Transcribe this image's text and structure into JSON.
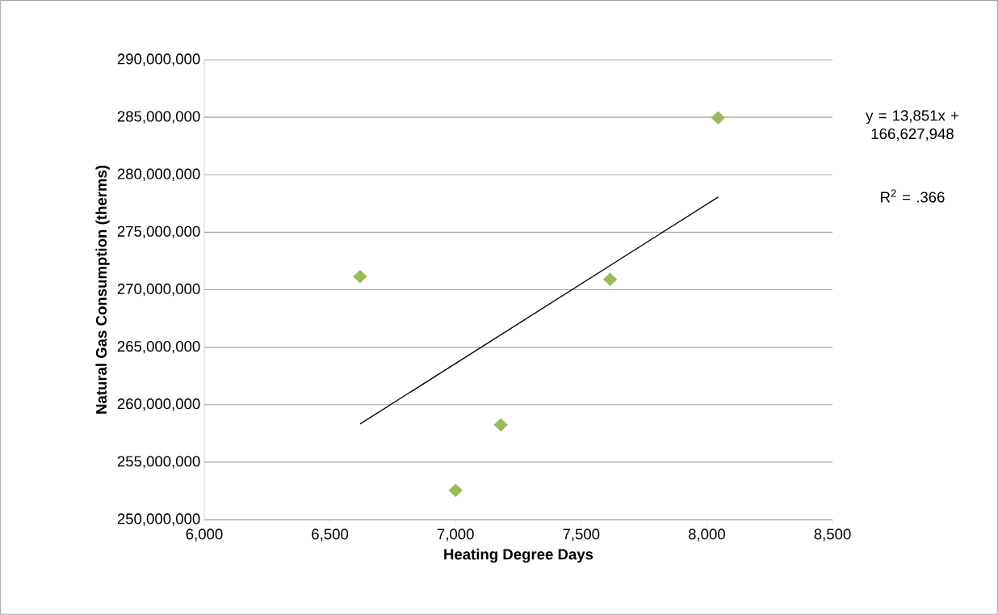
{
  "chart_data": {
    "type": "scatter",
    "xlabel": "Heating Degree Days",
    "ylabel": "Natural Gas Consumption (therms)",
    "series": [
      {
        "color": "#9bbb59",
        "marker": "diamond",
        "x": [
          6620,
          7000,
          7180,
          7615,
          8045
        ],
        "values": [
          271150000,
          252550000,
          258250000,
          270900000,
          284950000
        ]
      },
      {
        "type": "line",
        "color": "#000000",
        "marker": "none",
        "line_style": "solid",
        "x": [
          6620,
          8045
        ],
        "values": [
          258320000,
          278060000
        ]
      }
    ],
    "xlim": [
      6000,
      8500
    ],
    "xticks": [
      {
        "value": 6000,
        "label": "6,000"
      },
      {
        "value": 6500,
        "label": "6,500"
      },
      {
        "value": 7000,
        "label": "7,000"
      },
      {
        "value": 7500,
        "label": "7,500"
      },
      {
        "value": 8000,
        "label": "8,000"
      },
      {
        "value": 8500,
        "label": "8,500"
      }
    ],
    "ylim": [
      250000000,
      290000000
    ],
    "yticks": [
      {
        "value": 250000000,
        "label": "250,000,000"
      },
      {
        "value": 255000000,
        "label": "255,000,000"
      },
      {
        "value": 260000000,
        "label": "260,000,000"
      },
      {
        "value": 265000000,
        "label": "265,000,000"
      },
      {
        "value": 270000000,
        "label": "270,000,000"
      },
      {
        "value": 275000000,
        "label": "275,000,000"
      },
      {
        "value": 280000000,
        "label": "280,000,000"
      },
      {
        "value": 285000000,
        "label": "285,000,000"
      },
      {
        "value": 290000000,
        "label": "290,000,000"
      }
    ],
    "grid": "y",
    "annotations": [
      "y = 13,851x + 166,627,948",
      "R$^{2}$ = .366"
    ]
  }
}
